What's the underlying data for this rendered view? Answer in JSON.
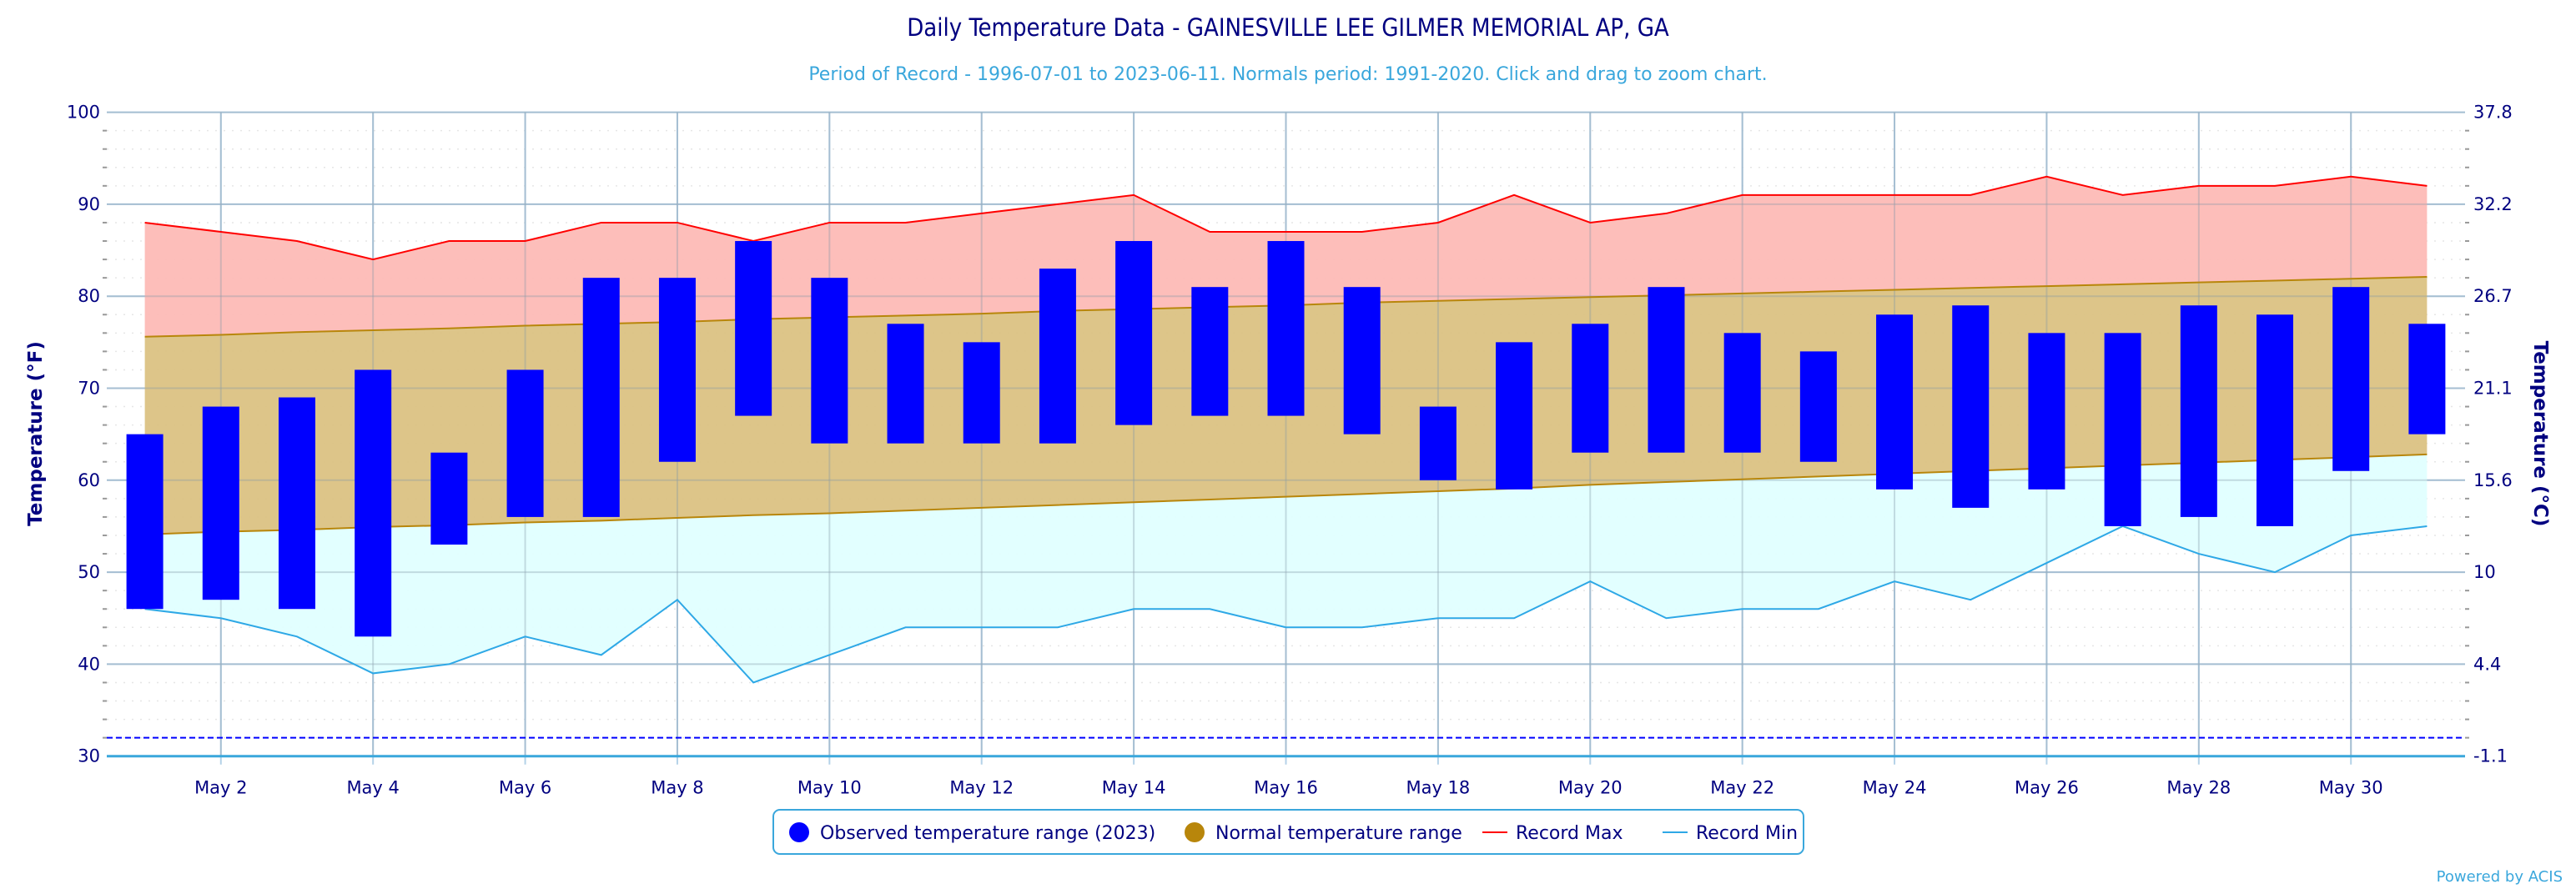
{
  "chart_data": {
    "type": "bar",
    "title": "Daily Temperature Data - GAINESVILLE LEE GILMER MEMORIAL AP, GA",
    "subtitle": "Period of Record - 1996-07-01 to 2023-06-11. Normals period: 1991-2020. Click and drag to zoom chart.",
    "ylabel": "Temperature (°F)",
    "ylabel_right": "Temperature (°C)",
    "ylim": [
      30,
      100
    ],
    "y_ticks": [
      30,
      40,
      50,
      60,
      70,
      80,
      90,
      100
    ],
    "y_ticks_right": [
      "-1.1",
      "4.4",
      "10",
      "15.6",
      "21.1",
      "26.7",
      "32.2",
      "37.8"
    ],
    "xlim": [
      0.5,
      31.5
    ],
    "x_ticks": [
      {
        "day": 2,
        "label": "May 2"
      },
      {
        "day": 4,
        "label": "May 4"
      },
      {
        "day": 6,
        "label": "May 6"
      },
      {
        "day": 8,
        "label": "May 8"
      },
      {
        "day": 10,
        "label": "May 10"
      },
      {
        "day": 12,
        "label": "May 12"
      },
      {
        "day": 14,
        "label": "May 14"
      },
      {
        "day": 16,
        "label": "May 16"
      },
      {
        "day": 18,
        "label": "May 18"
      },
      {
        "day": 20,
        "label": "May 20"
      },
      {
        "day": 22,
        "label": "May 22"
      },
      {
        "day": 24,
        "label": "May 24"
      },
      {
        "day": 26,
        "label": "May 26"
      },
      {
        "day": 28,
        "label": "May 28"
      },
      {
        "day": 30,
        "label": "May 30"
      }
    ],
    "grid": true,
    "freezing_line": 32,
    "days": [
      1,
      2,
      3,
      4,
      5,
      6,
      7,
      8,
      9,
      10,
      11,
      12,
      13,
      14,
      15,
      16,
      17,
      18,
      19,
      20,
      21,
      22,
      23,
      24,
      25,
      26,
      27,
      28,
      29,
      30,
      31
    ],
    "series": [
      {
        "name": "Observed temperature range (2023)",
        "type": "columnrange",
        "color": "#0000ff",
        "low": [
          46,
          47,
          46,
          43,
          53,
          56,
          56,
          62,
          67,
          64,
          64,
          64,
          64,
          66,
          67,
          67,
          65,
          60,
          59,
          63,
          63,
          63,
          62,
          59,
          57,
          59,
          55,
          56,
          55,
          61,
          65
        ],
        "high": [
          65,
          68,
          69,
          72,
          63,
          72,
          82,
          82,
          86,
          82,
          77,
          75,
          83,
          86,
          81,
          86,
          81,
          68,
          75,
          77,
          81,
          76,
          74,
          78,
          79,
          76,
          76,
          79,
          78,
          81,
          77
        ]
      },
      {
        "name": "Normal temperature range",
        "type": "arearange",
        "color": "#b8860b",
        "fill": "#dbc283",
        "low": [
          54.1,
          54.4,
          54.6,
          54.9,
          55.1,
          55.4,
          55.6,
          55.9,
          56.2,
          56.4,
          56.7,
          57.0,
          57.3,
          57.6,
          57.9,
          58.2,
          58.5,
          58.8,
          59.1,
          59.5,
          59.8,
          60.1,
          60.4,
          60.7,
          61.0,
          61.3,
          61.6,
          61.9,
          62.2,
          62.5,
          62.8
        ],
        "high": [
          75.6,
          75.8,
          76.1,
          76.3,
          76.5,
          76.8,
          77.0,
          77.2,
          77.5,
          77.7,
          77.9,
          78.1,
          78.4,
          78.6,
          78.8,
          79.0,
          79.3,
          79.5,
          79.7,
          79.9,
          80.1,
          80.3,
          80.5,
          80.7,
          80.9,
          81.1,
          81.3,
          81.5,
          81.7,
          81.9,
          82.1
        ]
      },
      {
        "name": "Record Max",
        "type": "line",
        "color": "#ff0000",
        "fill": "#fdbbb6",
        "values": [
          88,
          87,
          86,
          84,
          86,
          86,
          88,
          88,
          86,
          88,
          88,
          89,
          90,
          91,
          87,
          87,
          87,
          88,
          91,
          88,
          89,
          91,
          91,
          91,
          91,
          93,
          91,
          92,
          92,
          93,
          92
        ]
      },
      {
        "name": "Record Min",
        "type": "line",
        "color": "#2ea8e6",
        "fill": "#e0ffff",
        "values": [
          46,
          45,
          43,
          39,
          40,
          43,
          41,
          47,
          38,
          41,
          44,
          44,
          44,
          46,
          46,
          44,
          44,
          45,
          45,
          49,
          45,
          46,
          46,
          49,
          47,
          51,
          55,
          52,
          50,
          54,
          55
        ]
      }
    ],
    "legend": {
      "placement": "bottom-center",
      "items": [
        {
          "label": "Observed temperature range (2023)",
          "symbol": "circle",
          "color": "#0000ff"
        },
        {
          "label": "Normal temperature range",
          "symbol": "circle",
          "color": "#b8860b"
        },
        {
          "label": "Record Max",
          "symbol": "line",
          "color": "#ff0000"
        },
        {
          "label": "Record Min",
          "symbol": "line",
          "color": "#2ea8e6"
        }
      ]
    },
    "credit": "Powered by ACIS"
  }
}
